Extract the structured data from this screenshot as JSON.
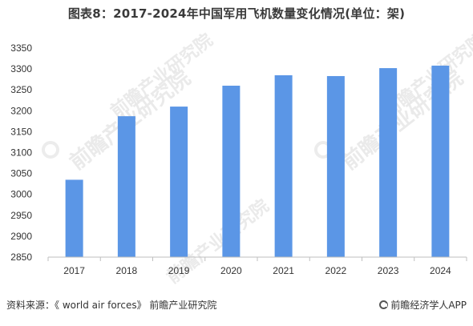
{
  "title": "图表8：2017-2024年中国军用飞机数量变化情况(单位：架)",
  "source": "资料来源：《 world air forces》 前瞻产业研究院",
  "brand": "前瞻经济学人APP",
  "watermark": {
    "text": "前瞻产业研究院"
  },
  "colors": {
    "bar": "#5b96e6",
    "axis": "#bfbfbf",
    "text": "#333333"
  },
  "chart_data": {
    "type": "bar",
    "categories": [
      "2017",
      "2018",
      "2019",
      "2020",
      "2021",
      "2022",
      "2023",
      "2024"
    ],
    "values": [
      3035,
      3187,
      3210,
      3260,
      3285,
      3283,
      3302,
      3308
    ],
    "ylim": [
      2850,
      3350
    ],
    "yticks": [
      2850,
      2900,
      2950,
      3000,
      3050,
      3100,
      3150,
      3200,
      3250,
      3300,
      3350
    ],
    "grid": false,
    "legend": "none",
    "title": "图表8：2017-2024年中国军用飞机数量变化情况(单位：架)",
    "xlabel": "",
    "ylabel": ""
  }
}
